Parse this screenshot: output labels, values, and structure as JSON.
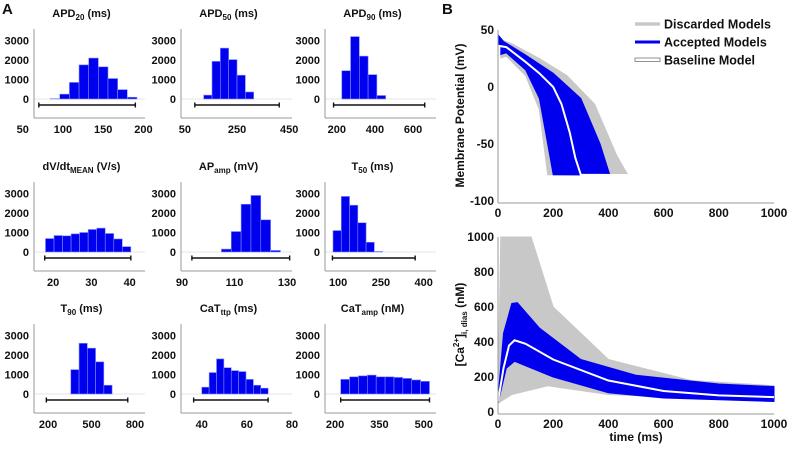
{
  "panel_labels": {
    "a": "A",
    "b": "B"
  },
  "colors": {
    "accepted": "#0000ee",
    "discarded": "#c8c8c8",
    "baseline": "#ffffff",
    "range_bar": "#111111"
  },
  "chart_data": [
    {
      "type": "bar",
      "panel": "A",
      "title": "APD",
      "title_sub": "20",
      "title_unit": " (ms)",
      "xticks": [
        50,
        100,
        150,
        200
      ],
      "xlim": [
        64,
        202
      ],
      "yticks": [
        0,
        1000,
        2000,
        3000
      ],
      "bin_start": 84,
      "bin_width": 12,
      "values": [
        20,
        250,
        850,
        1750,
        2100,
        1650,
        1050,
        480,
        90
      ],
      "range": [
        70,
        190
      ]
    },
    {
      "type": "bar",
      "panel": "A",
      "title": "APD",
      "title_sub": "50",
      "title_unit": " (ms)",
      "xticks": [
        50,
        250,
        450
      ],
      "xlim": [
        35,
        461
      ],
      "yticks": [
        0,
        1000,
        2000,
        3000
      ],
      "bin_start": 122,
      "bin_width": 32,
      "values": [
        200,
        1930,
        2610,
        2020,
        1220,
        360
      ],
      "range": [
        88,
        412
      ]
    },
    {
      "type": "bar",
      "panel": "A",
      "title": "APD",
      "title_sub": "90",
      "title_unit": " (ms)",
      "xticks": [
        200,
        400,
        600
      ],
      "xlim": [
        138,
        720
      ],
      "yticks": [
        0,
        1000,
        2000,
        3000
      ],
      "bin_start": 226,
      "bin_width": 46,
      "values": [
        1450,
        3200,
        2200,
        1250,
        180
      ],
      "range": [
        183,
        661
      ]
    },
    {
      "type": "bar",
      "panel": "A",
      "title": "dV/dt",
      "title_sub": "MEAN",
      "title_unit": " (V/s)",
      "xticks": [
        20,
        30,
        40
      ],
      "xlim": [
        15,
        44
      ],
      "yticks": [
        0,
        1000,
        2000,
        3000
      ],
      "bin_start": 18,
      "bin_width": 2.23,
      "values": [
        690,
        845,
        830,
        930,
        1000,
        1155,
        1225,
        950,
        670,
        275
      ],
      "range": [
        17.8,
        40.3
      ]
    },
    {
      "type": "bar",
      "panel": "A",
      "title": "AP",
      "title_sub": "amp",
      "title_unit": " (mV)",
      "xticks": [
        90,
        110,
        130
      ],
      "xlim": [
        89.6,
        131.9
      ],
      "yticks": [
        0,
        1000,
        2000,
        3000
      ],
      "bin_start": 105,
      "bin_width": 3.75,
      "values": [
        150,
        1050,
        2450,
        2900,
        1650,
        80
      ],
      "range": [
        93.75,
        131
      ]
    },
    {
      "type": "bar",
      "panel": "A",
      "title": "T",
      "title_sub": "50",
      "title_unit": " (ms)",
      "xticks": [
        100,
        250,
        400
      ],
      "xlim": [
        54,
        443
      ],
      "yticks": [
        0,
        1000,
        2000,
        3000
      ],
      "bin_start": 82,
      "bin_width": 29,
      "values": [
        1100,
        2850,
        2400,
        1500,
        500,
        30
      ],
      "range": [
        80,
        370
      ]
    },
    {
      "type": "bar",
      "panel": "A",
      "title": "T",
      "title_sub": "90",
      "title_unit": " (ms)",
      "xticks": [
        200,
        500,
        800
      ],
      "xlim": [
        103,
        869
      ],
      "yticks": [
        0,
        1000,
        2000,
        3000
      ],
      "bin_start": 357,
      "bin_width": 57,
      "values": [
        1250,
        2600,
        2350,
        1650,
        450
      ],
      "range": [
        188,
        750
      ]
    },
    {
      "type": "bar",
      "panel": "A",
      "title": "CaT",
      "title_sub": "ttp",
      "title_unit": " (ms)",
      "xticks": [
        40,
        60,
        80
      ],
      "xlim": [
        30.8,
        80
      ],
      "yticks": [
        0,
        1000,
        2000,
        3000
      ],
      "bin_start": 40,
      "bin_width": 3.27,
      "values": [
        350,
        1100,
        1800,
        1350,
        1200,
        1150,
        750,
        450,
        300
      ],
      "range": [
        36.4,
        69.4
      ]
    },
    {
      "type": "bar",
      "panel": "A",
      "title": "CaT",
      "title_sub": "amp",
      "title_unit": " (nM)",
      "xticks": [
        200,
        350,
        500
      ],
      "xlim": [
        166,
        541
      ],
      "yticks": [
        0,
        1000,
        2000,
        3000
      ],
      "bin_start": 219,
      "bin_width": 30,
      "values": [
        750,
        880,
        930,
        970,
        880,
        880,
        850,
        800,
        720,
        650
      ],
      "range": [
        219,
        519
      ]
    },
    {
      "type": "line",
      "panel": "B",
      "ylabel": "Membrane Potential (mV)",
      "xlim": [
        0,
        1000
      ],
      "ylim": [
        -100,
        50
      ],
      "xticks": [
        0,
        200,
        400,
        600,
        800,
        1000
      ],
      "yticks": [
        -100,
        -50,
        0,
        50
      ],
      "legend": {
        "placement": "top-right",
        "entries": [
          "Discarded Models",
          "Accepted Models",
          "Baseline Model"
        ]
      },
      "discarded_band": {
        "upper": [
          [
            0,
            -78
          ],
          [
            3,
            42
          ],
          [
            50,
            38
          ],
          [
            150,
            25
          ],
          [
            250,
            10
          ],
          [
            350,
            -15
          ],
          [
            430,
            -60
          ],
          [
            470,
            -77
          ],
          [
            1000,
            -78
          ]
        ],
        "lower": [
          [
            0,
            -78
          ],
          [
            3,
            25
          ],
          [
            30,
            27
          ],
          [
            100,
            10
          ],
          [
            150,
            -20
          ],
          [
            180,
            -77
          ],
          [
            1000,
            -78
          ]
        ]
      },
      "accepted_band": {
        "upper": [
          [
            0,
            -78
          ],
          [
            3,
            45
          ],
          [
            20,
            40
          ],
          [
            100,
            28
          ],
          [
            200,
            12
          ],
          [
            300,
            -10
          ],
          [
            370,
            -50
          ],
          [
            405,
            -77
          ],
          [
            1000,
            -78
          ]
        ],
        "lower": [
          [
            0,
            -78
          ],
          [
            3,
            28
          ],
          [
            30,
            30
          ],
          [
            100,
            15
          ],
          [
            150,
            -10
          ],
          [
            180,
            -50
          ],
          [
            200,
            -77
          ],
          [
            1000,
            -78
          ]
        ]
      },
      "baseline": [
        [
          0,
          -78
        ],
        [
          5,
          36
        ],
        [
          30,
          35
        ],
        [
          100,
          22
        ],
        [
          150,
          12
        ],
        [
          200,
          0
        ],
        [
          230,
          -15
        ],
        [
          260,
          -40
        ],
        [
          280,
          -62
        ],
        [
          300,
          -77
        ],
        [
          1000,
          -78
        ]
      ]
    },
    {
      "type": "line",
      "panel": "B",
      "ylabel": "[Ca",
      "ylabel_sup": "2+",
      "ylabel_mid": "]",
      "ylabel_sub": "i, dias",
      "ylabel_unit": " (nM)",
      "xlabel": "time (ms)",
      "xlim": [
        0,
        1000
      ],
      "ylim": [
        0,
        1000
      ],
      "xticks": [
        0,
        200,
        400,
        600,
        800,
        1000
      ],
      "yticks": [
        0,
        200,
        400,
        600,
        800,
        1000
      ],
      "discarded_band": {
        "upper": [
          [
            0,
            100
          ],
          [
            10,
            1000
          ],
          [
            120,
            1000
          ],
          [
            200,
            600
          ],
          [
            400,
            300
          ],
          [
            700,
            180
          ],
          [
            1000,
            150
          ]
        ],
        "lower": [
          [
            0,
            50
          ],
          [
            50,
            100
          ],
          [
            180,
            150
          ],
          [
            400,
            100
          ],
          [
            1000,
            60
          ]
        ]
      },
      "accepted_band": {
        "upper": [
          [
            0,
            80
          ],
          [
            20,
            450
          ],
          [
            50,
            620
          ],
          [
            70,
            625
          ],
          [
            150,
            480
          ],
          [
            300,
            300
          ],
          [
            500,
            210
          ],
          [
            800,
            160
          ],
          [
            1000,
            145
          ]
        ],
        "lower": [
          [
            0,
            50
          ],
          [
            30,
            250
          ],
          [
            60,
            290
          ],
          [
            200,
            200
          ],
          [
            400,
            110
          ],
          [
            600,
            80
          ],
          [
            1000,
            60
          ]
        ]
      },
      "baseline": [
        [
          0,
          60
        ],
        [
          20,
          250
        ],
        [
          40,
          380
        ],
        [
          60,
          410
        ],
        [
          100,
          390
        ],
        [
          200,
          300
        ],
        [
          400,
          180
        ],
        [
          600,
          120
        ],
        [
          800,
          95
        ],
        [
          1000,
          85
        ]
      ]
    }
  ]
}
